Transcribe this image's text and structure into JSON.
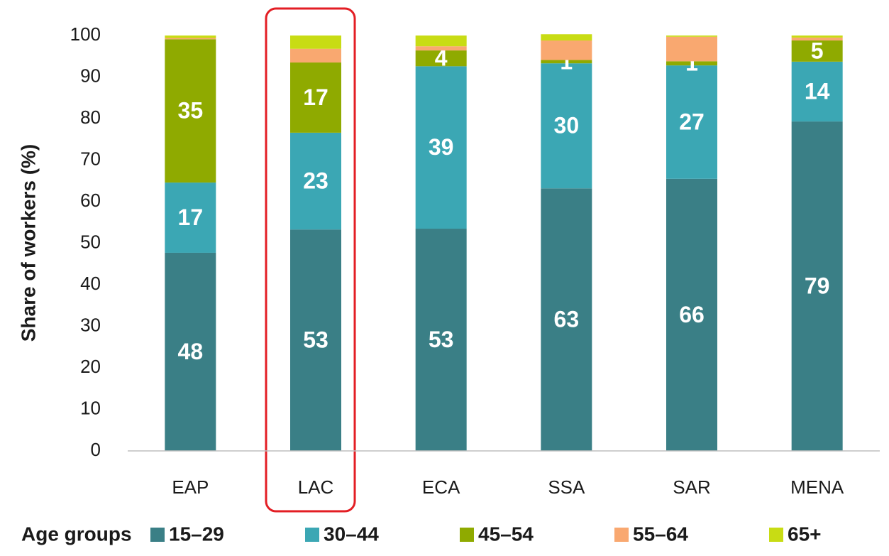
{
  "chart_data": {
    "type": "stacked_bar",
    "y_label": "Share of workers (%)",
    "legend_title": "Age groups",
    "categories": [
      "EAP",
      "LAC",
      "ECA",
      "SSA",
      "SAR",
      "MENA"
    ],
    "series": [
      {
        "name": "15–29",
        "color": "#3a7f86",
        "values": [
          47.7,
          53.3,
          53.5,
          63.2,
          65.5,
          79.3
        ],
        "value_labels": [
          "48",
          "53",
          "53",
          "63",
          "66",
          "79"
        ]
      },
      {
        "name": "30–44",
        "color": "#3ba7b4",
        "values": [
          16.9,
          23.3,
          39.1,
          30.1,
          27.3,
          14.4
        ],
        "value_labels": [
          "17",
          "23",
          "39",
          "30",
          "27",
          "14"
        ]
      },
      {
        "name": "45–54",
        "color": "#8faa00",
        "values": [
          34.5,
          16.9,
          3.8,
          0.8,
          1.0,
          5.1
        ],
        "value_labels": [
          "35",
          "17",
          "4",
          "1",
          "1",
          "5"
        ]
      },
      {
        "name": "55–64",
        "color": "#f9a870",
        "values": [
          0.3,
          3.3,
          1.0,
          4.7,
          5.9,
          0.7
        ],
        "value_labels": [
          null,
          null,
          null,
          null,
          null,
          null
        ]
      },
      {
        "name": "65+",
        "color": "#c8dc14",
        "values": [
          0.6,
          3.2,
          2.6,
          1.5,
          0.3,
          0.5
        ],
        "value_labels": [
          null,
          null,
          null,
          null,
          null,
          null
        ]
      }
    ],
    "ylim": [
      0,
      100
    ],
    "yticks": [
      0,
      10,
      20,
      30,
      40,
      50,
      60,
      70,
      80,
      90,
      100
    ],
    "grid": false
  }
}
